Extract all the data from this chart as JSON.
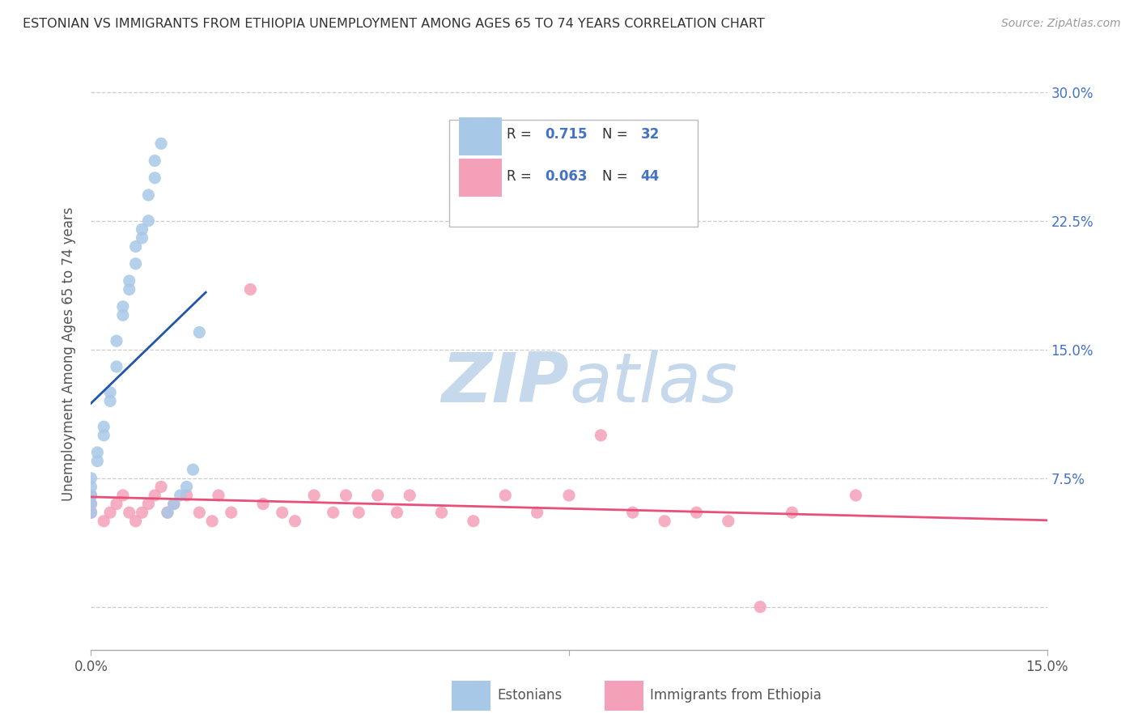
{
  "title": "ESTONIAN VS IMMIGRANTS FROM ETHIOPIA UNEMPLOYMENT AMONG AGES 65 TO 74 YEARS CORRELATION CHART",
  "source": "Source: ZipAtlas.com",
  "ylabel": "Unemployment Among Ages 65 to 74 years",
  "xlim": [
    0.0,
    0.15
  ],
  "ylim": [
    -0.025,
    0.32
  ],
  "yticks": [
    0.0,
    0.075,
    0.15,
    0.225,
    0.3
  ],
  "ytick_labels": [
    "",
    "7.5%",
    "15.0%",
    "22.5%",
    "30.0%"
  ],
  "xticks": [
    0.0,
    0.075,
    0.15
  ],
  "xtick_labels": [
    "0.0%",
    "",
    "15.0%"
  ],
  "estonian_R": 0.715,
  "estonian_N": 32,
  "ethiopia_R": 0.063,
  "ethiopia_N": 44,
  "estonian_color": "#a8c8e8",
  "ethiopia_color": "#f4a0b8",
  "estonian_line_color": "#2255aa",
  "ethiopia_line_color": "#e8507a",
  "grid_color": "#cccccc",
  "background_color": "#ffffff",
  "watermark_color": "#c5d8ec",
  "est_x": [
    0.0,
    0.0,
    0.0,
    0.0,
    0.0,
    0.001,
    0.001,
    0.002,
    0.002,
    0.003,
    0.003,
    0.004,
    0.004,
    0.005,
    0.005,
    0.006,
    0.006,
    0.007,
    0.007,
    0.008,
    0.008,
    0.009,
    0.009,
    0.01,
    0.01,
    0.011,
    0.012,
    0.013,
    0.014,
    0.015,
    0.016,
    0.017
  ],
  "est_y": [
    0.055,
    0.06,
    0.065,
    0.07,
    0.075,
    0.085,
    0.09,
    0.1,
    0.105,
    0.12,
    0.125,
    0.14,
    0.155,
    0.17,
    0.175,
    0.185,
    0.19,
    0.2,
    0.21,
    0.215,
    0.22,
    0.225,
    0.24,
    0.25,
    0.26,
    0.27,
    0.055,
    0.06,
    0.065,
    0.07,
    0.08,
    0.16
  ],
  "eth_x": [
    0.0,
    0.0,
    0.0,
    0.002,
    0.003,
    0.004,
    0.005,
    0.006,
    0.007,
    0.008,
    0.009,
    0.01,
    0.011,
    0.012,
    0.013,
    0.015,
    0.017,
    0.019,
    0.02,
    0.022,
    0.025,
    0.027,
    0.03,
    0.032,
    0.035,
    0.038,
    0.04,
    0.042,
    0.045,
    0.048,
    0.05,
    0.055,
    0.06,
    0.065,
    0.07,
    0.075,
    0.08,
    0.085,
    0.09,
    0.095,
    0.1,
    0.105,
    0.11,
    0.12
  ],
  "eth_y": [
    0.055,
    0.06,
    0.065,
    0.05,
    0.055,
    0.06,
    0.065,
    0.055,
    0.05,
    0.055,
    0.06,
    0.065,
    0.07,
    0.055,
    0.06,
    0.065,
    0.055,
    0.05,
    0.065,
    0.055,
    0.185,
    0.06,
    0.055,
    0.05,
    0.065,
    0.055,
    0.065,
    0.055,
    0.065,
    0.055,
    0.065,
    0.055,
    0.05,
    0.065,
    0.055,
    0.065,
    0.1,
    0.055,
    0.05,
    0.055,
    0.05,
    0.0,
    0.055,
    0.065
  ],
  "est_trendline_x": [
    -0.003,
    0.017
  ],
  "eth_trendline_slope": 0.12,
  "eth_trendline_intercept": 0.057
}
